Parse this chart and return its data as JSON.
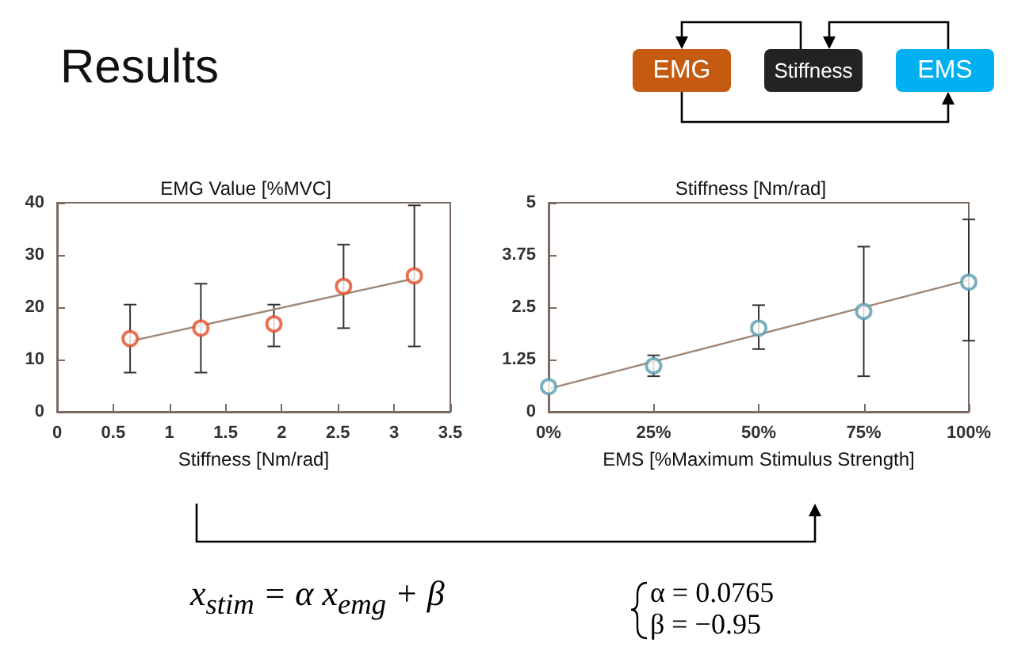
{
  "chart_data": [
    {
      "type": "scatter",
      "title": "EMG Value [%MVC]",
      "xlabel": "Stiffness [Nm/rad]",
      "xlim": [
        0,
        3.5
      ],
      "xticks": [
        0,
        0.5,
        1,
        1.5,
        2,
        2.5,
        3,
        3.5
      ],
      "ylim": [
        0,
        40
      ],
      "yticks": [
        0,
        10,
        20,
        30,
        40
      ],
      "grid": false,
      "annotations": [
        "Results",
        "EMG",
        "Stiffness",
        "EMS",
        "x$_{stim}$ = α x$_{emg}$ + β",
        "α = 0.0765",
        "β = −0.95"
      ],
      "series": [
        {
          "marker": "circle",
          "color": "#e0502a",
          "x": [
            0.65,
            1.28,
            1.93,
            2.55,
            3.18
          ],
          "values": [
            14,
            16,
            16.8,
            24,
            26
          ],
          "errors": [
            [
              7.5,
              20.5
            ],
            [
              7.5,
              24.5
            ],
            [
              12.5,
              20.5
            ],
            [
              16,
              32
            ],
            [
              12.5,
              39.5
            ]
          ]
        },
        {
          "type": "line",
          "color": "#a08878",
          "x": [
            0.65,
            3.18
          ],
          "values": [
            13.5,
            25.5
          ]
        }
      ]
    },
    {
      "type": "scatter",
      "title": "Stiffness [Nm/rad]",
      "xlabel": "EMS [%Maximum Stimulus Strength]",
      "xlim": [
        0,
        100
      ],
      "xticks": [
        {
          "value": 0,
          "label": "0%"
        },
        {
          "value": 25,
          "label": "25%"
        },
        {
          "value": 50,
          "label": "50%"
        },
        {
          "value": 75,
          "label": "75%"
        },
        {
          "value": 100,
          "label": "100%"
        }
      ],
      "ylim": [
        0,
        5
      ],
      "yticks": [
        0,
        1.25,
        2.5,
        3.75,
        5
      ],
      "grid": false,
      "series": [
        {
          "marker": "circle",
          "color": "#5a9cb0",
          "x": [
            0,
            25,
            50,
            75,
            100
          ],
          "values": [
            0.6,
            1.1,
            2.0,
            2.4,
            3.1
          ],
          "errors": [
            null,
            [
              0.85,
              1.35
            ],
            [
              1.5,
              2.55
            ],
            [
              0.85,
              3.95
            ],
            [
              1.7,
              4.6
            ]
          ]
        },
        {
          "type": "line",
          "color": "#a08878",
          "x": [
            0,
            100
          ],
          "values": [
            0.55,
            3.15
          ]
        }
      ]
    }
  ]
}
